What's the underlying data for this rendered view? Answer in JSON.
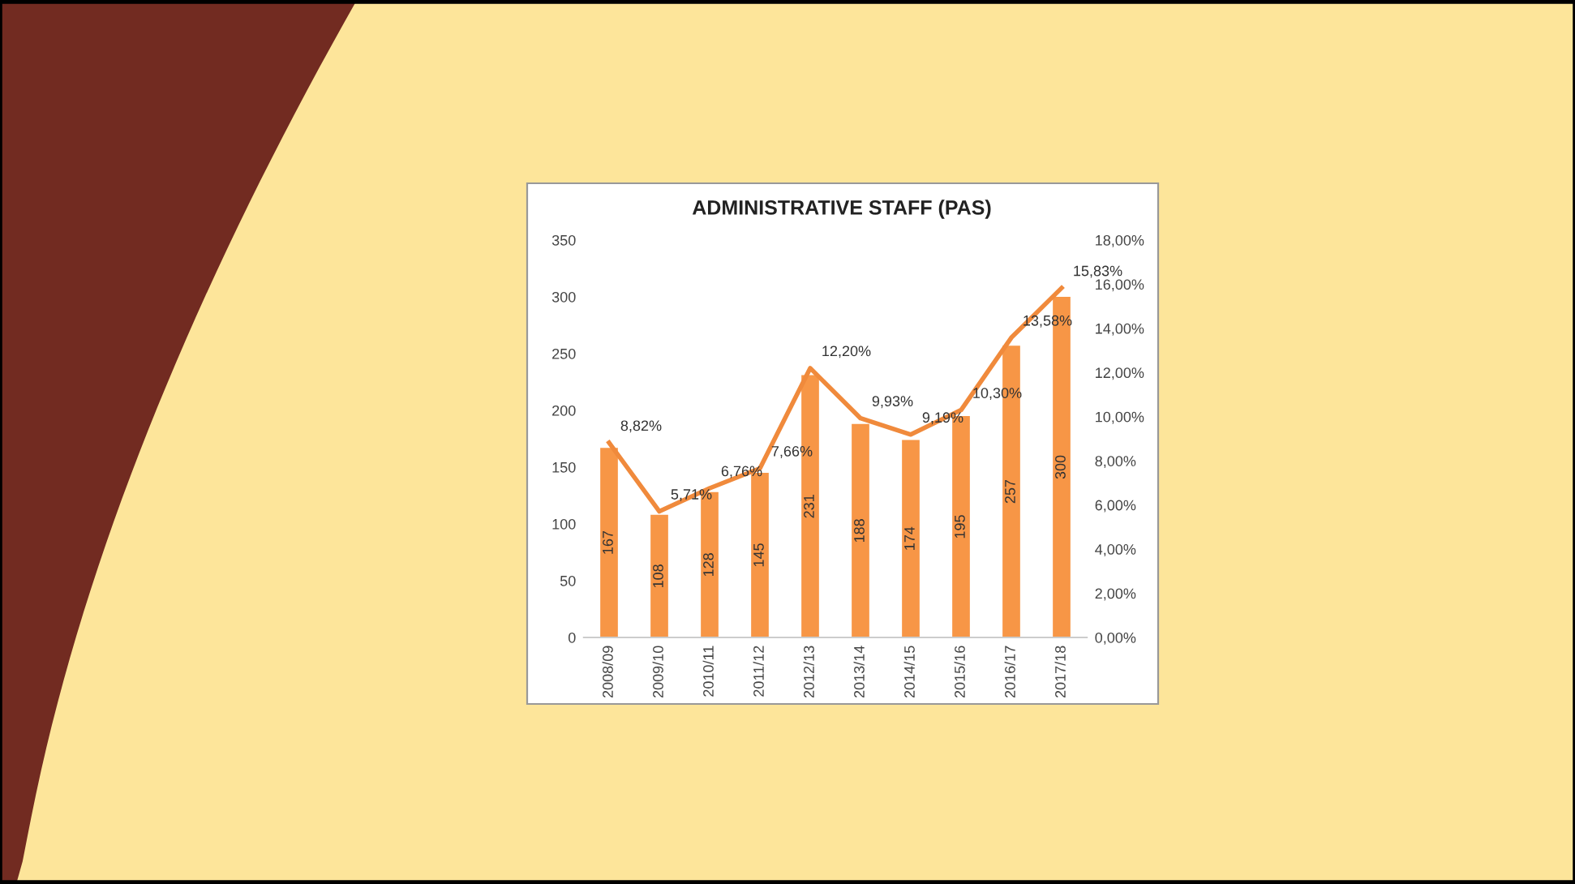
{
  "chart_data": {
    "type": "bar",
    "title": "ADMINISTRATIVE STAFF (PAS)",
    "categories": [
      "2008/09",
      "2009/10",
      "2010/11",
      "2011/12",
      "2012/13",
      "2013/14",
      "2014/15",
      "2015/16",
      "2016/17",
      "2017/18"
    ],
    "series": [
      {
        "color": "#f79646",
        "values": [
          167,
          108,
          128,
          145,
          231,
          188,
          174,
          195,
          257,
          300
        ],
        "value_labels": [
          "167",
          "108",
          "128",
          "145",
          "231",
          "188",
          "174",
          "195",
          "257",
          "300"
        ]
      },
      {
        "type": "line",
        "axis": "y2",
        "color": "#f08a3c",
        "values": [
          8.82,
          5.71,
          6.76,
          7.66,
          12.2,
          9.93,
          9.19,
          10.3,
          13.58,
          15.83
        ],
        "value_labels": [
          "8,82%",
          "5,71%",
          "6,76%",
          "7,66%",
          "12,20%",
          "9,93%",
          "9,19%",
          "10,30%",
          "13,58%",
          "15,83%"
        ]
      }
    ],
    "ylim": [
      0,
      350
    ],
    "yticks": [
      0,
      50,
      100,
      150,
      200,
      250,
      300,
      350
    ],
    "y2lim": [
      0,
      18
    ],
    "y2ticks": [
      {
        "value": 0,
        "label": "0,00%"
      },
      {
        "value": 2,
        "label": "2,00%"
      },
      {
        "value": 4,
        "label": "4,00%"
      },
      {
        "value": 6,
        "label": "6,00%"
      },
      {
        "value": 8,
        "label": "8,00%"
      },
      {
        "value": 10,
        "label": "10,00%"
      },
      {
        "value": 12,
        "label": "12,00%"
      },
      {
        "value": 14,
        "label": "14,00%"
      },
      {
        "value": 16,
        "label": "16,00%"
      },
      {
        "value": 18,
        "label": "18,00%"
      }
    ],
    "grid": false,
    "legend": false,
    "marker": "none",
    "line_style": "solid"
  }
}
